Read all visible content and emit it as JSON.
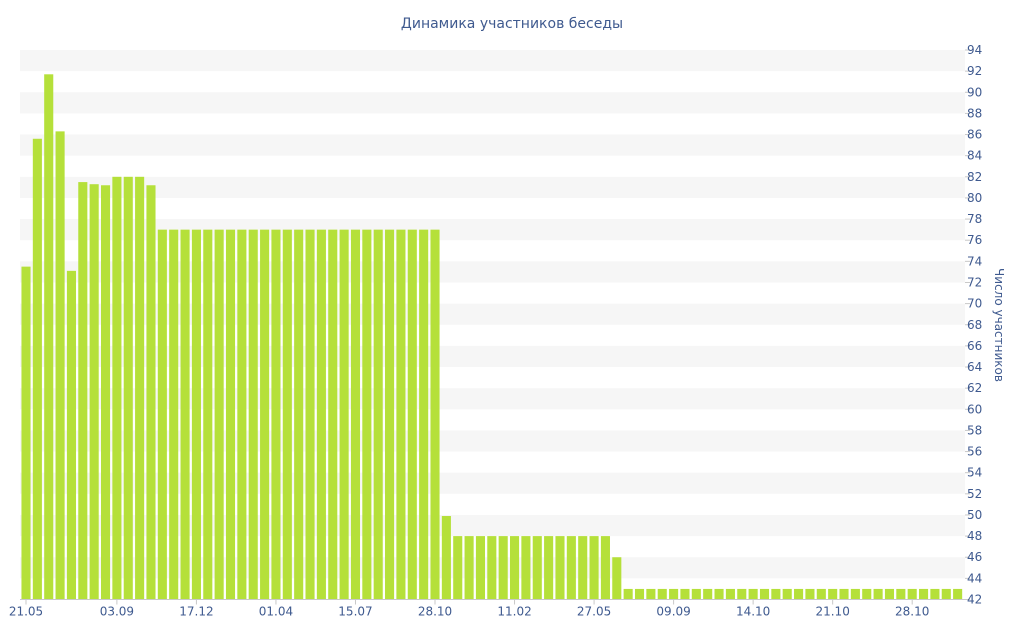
{
  "chart_data": {
    "type": "bar",
    "title": "Динамика участников беседы",
    "ylabel": "Число участников",
    "ylim": [
      42,
      94
    ],
    "y_ticks": [
      42,
      44,
      46,
      48,
      50,
      52,
      54,
      56,
      58,
      60,
      62,
      64,
      66,
      68,
      70,
      72,
      74,
      76,
      78,
      80,
      82,
      84,
      86,
      88,
      90,
      92,
      94
    ],
    "x_ticks": [
      {
        "label": "21.05",
        "index": 0
      },
      {
        "label": "03.09",
        "index": 8
      },
      {
        "label": "17.12",
        "index": 15
      },
      {
        "label": "01.04",
        "index": 22
      },
      {
        "label": "15.07",
        "index": 29
      },
      {
        "label": "28.10",
        "index": 36
      },
      {
        "label": "11.02",
        "index": 43
      },
      {
        "label": "27.05",
        "index": 50
      },
      {
        "label": "09.09",
        "index": 57
      },
      {
        "label": "14.10",
        "index": 64
      },
      {
        "label": "21.10",
        "index": 71
      },
      {
        "label": "28.10",
        "index": 78
      }
    ],
    "grid": "alternating horizontal bands",
    "y_axis_position": "right",
    "values": [
      73.5,
      85.6,
      91.7,
      86.3,
      73.1,
      81.5,
      81.3,
      81.2,
      82,
      82,
      82,
      81.2,
      77,
      77,
      77,
      77,
      77,
      77,
      77,
      77,
      77,
      77,
      77,
      77,
      77,
      77,
      77,
      77,
      77,
      77,
      77,
      77,
      77,
      77,
      77,
      77,
      77,
      49.9,
      48,
      48,
      48,
      48,
      48,
      48,
      48,
      48,
      48,
      48,
      48,
      48,
      48,
      48,
      46,
      43,
      43,
      43,
      43,
      43,
      43,
      43,
      43,
      43,
      43,
      43,
      43,
      43,
      43,
      43,
      43,
      43,
      43,
      43,
      43,
      43,
      43,
      43,
      43,
      43,
      43,
      43,
      43,
      43,
      43
    ],
    "colors": {
      "bar": "#b5e03a",
      "text": "#3f5a8f",
      "band": "#f6f6f6"
    }
  }
}
